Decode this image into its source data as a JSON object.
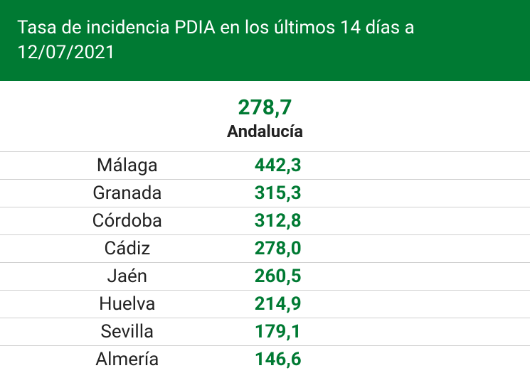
{
  "header": {
    "title": "Tasa de incidencia PDIA en los últimos 14 días a 12/07/2021"
  },
  "summary": {
    "value": "278,7",
    "label": "Andalucía"
  },
  "colors": {
    "brand_green": "#007a33",
    "text_dark": "#222222",
    "border": "#d0d0d0",
    "background": "#ffffff"
  },
  "typography": {
    "header_fontsize": 26,
    "summary_value_fontsize": 30,
    "summary_label_fontsize": 24,
    "row_fontsize": 26
  },
  "table": {
    "rows": [
      {
        "province": "Málaga",
        "value": "442,3"
      },
      {
        "province": "Granada",
        "value": "315,3"
      },
      {
        "province": "Córdoba",
        "value": "312,8"
      },
      {
        "province": "Cádiz",
        "value": "278,0"
      },
      {
        "province": "Jaén",
        "value": "260,5"
      },
      {
        "province": "Huelva",
        "value": "214,9"
      },
      {
        "province": "Sevilla",
        "value": "179,1"
      },
      {
        "province": "Almería",
        "value": "146,6"
      }
    ]
  }
}
